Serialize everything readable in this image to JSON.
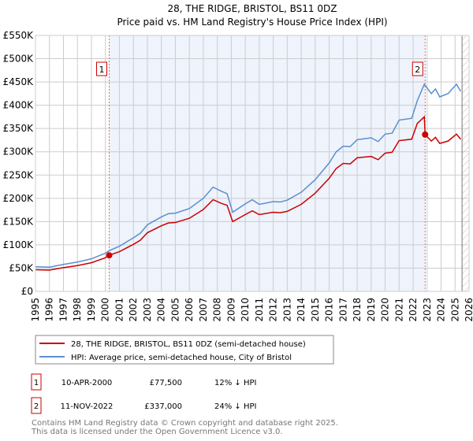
{
  "chart_data": {
    "type": "line",
    "title": "28, THE RIDGE, BRISTOL, BS11 0DZ",
    "subtitle": "Price paid vs. HM Land Registry's House Price Index (HPI)",
    "xlim": [
      1995,
      2026
    ],
    "ylim": [
      0,
      550000
    ],
    "x_ticks": [
      "1995",
      "1996",
      "1997",
      "1998",
      "1999",
      "2000",
      "2001",
      "2002",
      "2003",
      "2004",
      "2005",
      "2006",
      "2007",
      "2008",
      "2009",
      "2010",
      "2011",
      "2012",
      "2013",
      "2014",
      "2015",
      "2016",
      "2017",
      "2018",
      "2019",
      "2020",
      "2021",
      "2022",
      "2023",
      "2024",
      "2025",
      "2026"
    ],
    "y_ticks": [
      "£0",
      "£50K",
      "£100K",
      "£150K",
      "£200K",
      "£250K",
      "£300K",
      "£350K",
      "£400K",
      "£450K",
      "£500K",
      "£550K"
    ],
    "grid": true,
    "series": [
      {
        "name": "28, THE RIDGE, BRISTOL, BS11 0DZ (semi-detached house)",
        "color": "#cc0000",
        "points": [
          [
            1995,
            46.6
          ],
          [
            1996,
            45.8
          ],
          [
            1996.5,
            48.4
          ],
          [
            1997,
            51
          ],
          [
            1998,
            55.4
          ],
          [
            1999,
            61.6
          ],
          [
            2000,
            72.2
          ],
          [
            2000.27,
            77.5
          ],
          [
            2001,
            85.4
          ],
          [
            2002,
            101
          ],
          [
            2002.5,
            110
          ],
          [
            2003,
            126
          ],
          [
            2004,
            141
          ],
          [
            2004.5,
            147
          ],
          [
            2005,
            148
          ],
          [
            2006,
            157
          ],
          [
            2007,
            176
          ],
          [
            2007.7,
            197
          ],
          [
            2008.3,
            189
          ],
          [
            2008.7,
            185
          ],
          [
            2009.1,
            150
          ],
          [
            2010,
            165
          ],
          [
            2010.5,
            173
          ],
          [
            2011,
            165
          ],
          [
            2012,
            170
          ],
          [
            2012.5,
            169
          ],
          [
            2013,
            172
          ],
          [
            2014,
            187
          ],
          [
            2015,
            211
          ],
          [
            2016,
            243
          ],
          [
            2016.5,
            264
          ],
          [
            2017,
            275
          ],
          [
            2017.5,
            274
          ],
          [
            2018,
            287
          ],
          [
            2019,
            290
          ],
          [
            2019.5,
            283
          ],
          [
            2020,
            297
          ],
          [
            2020.5,
            299
          ],
          [
            2021,
            324
          ],
          [
            2021.9,
            327
          ],
          [
            2022.3,
            361
          ],
          [
            2022.8,
            375
          ],
          [
            2022.86,
            337
          ],
          [
            2023.3,
            323
          ],
          [
            2023.6,
            331
          ],
          [
            2023.9,
            318
          ],
          [
            2024.5,
            323
          ],
          [
            2025.1,
            338
          ],
          [
            2025.4,
            327
          ]
        ]
      },
      {
        "name": "HPI: Average price, semi-detached house, City of Bristol",
        "color": "#5b8fd0",
        "points": [
          [
            1995,
            53
          ],
          [
            1996,
            52
          ],
          [
            1996.5,
            55
          ],
          [
            1997,
            58
          ],
          [
            1998,
            63
          ],
          [
            1999,
            70
          ],
          [
            2000,
            82
          ],
          [
            2000.3,
            88
          ],
          [
            2001,
            97
          ],
          [
            2002,
            115
          ],
          [
            2002.5,
            125
          ],
          [
            2003,
            143
          ],
          [
            2004,
            160
          ],
          [
            2004.5,
            167
          ],
          [
            2005,
            168
          ],
          [
            2006,
            178
          ],
          [
            2007,
            200
          ],
          [
            2007.7,
            224
          ],
          [
            2008.3,
            215
          ],
          [
            2008.7,
            210
          ],
          [
            2009.1,
            170
          ],
          [
            2010,
            188
          ],
          [
            2010.5,
            197
          ],
          [
            2011,
            187
          ],
          [
            2012,
            193
          ],
          [
            2012.5,
            192
          ],
          [
            2013,
            196
          ],
          [
            2014,
            213
          ],
          [
            2015,
            240
          ],
          [
            2016,
            276
          ],
          [
            2016.5,
            300
          ],
          [
            2017,
            312
          ],
          [
            2017.5,
            311
          ],
          [
            2018,
            326
          ],
          [
            2019,
            330
          ],
          [
            2019.5,
            322
          ],
          [
            2020,
            338
          ],
          [
            2020.5,
            340
          ],
          [
            2021,
            368
          ],
          [
            2021.9,
            372
          ],
          [
            2022.3,
            410
          ],
          [
            2022.8,
            445
          ],
          [
            2023.3,
            425
          ],
          [
            2023.6,
            435
          ],
          [
            2023.9,
            418
          ],
          [
            2024.5,
            425
          ],
          [
            2025.1,
            445
          ],
          [
            2025.4,
            430
          ]
        ]
      }
    ],
    "y_unit": "thousands GBP",
    "sales": [
      {
        "label": "1",
        "x": 2000.27,
        "value": 77.5,
        "date": "10-APR-2000",
        "price": "£77,500",
        "hpi": "12% ↓ HPI"
      },
      {
        "label": "2",
        "x": 2022.86,
        "value": 337,
        "date": "11-NOV-2022",
        "price": "£337,000",
        "hpi": "24% ↓ HPI"
      }
    ],
    "shaded_range": [
      2000.27,
      2022.86
    ],
    "hatched_from": 2025.5,
    "legend_placement": "below"
  },
  "footer": {
    "line1": "Contains HM Land Registry data © Crown copyright and database right 2025.",
    "line2": "This data is licensed under the Open Government Licence v3.0."
  }
}
